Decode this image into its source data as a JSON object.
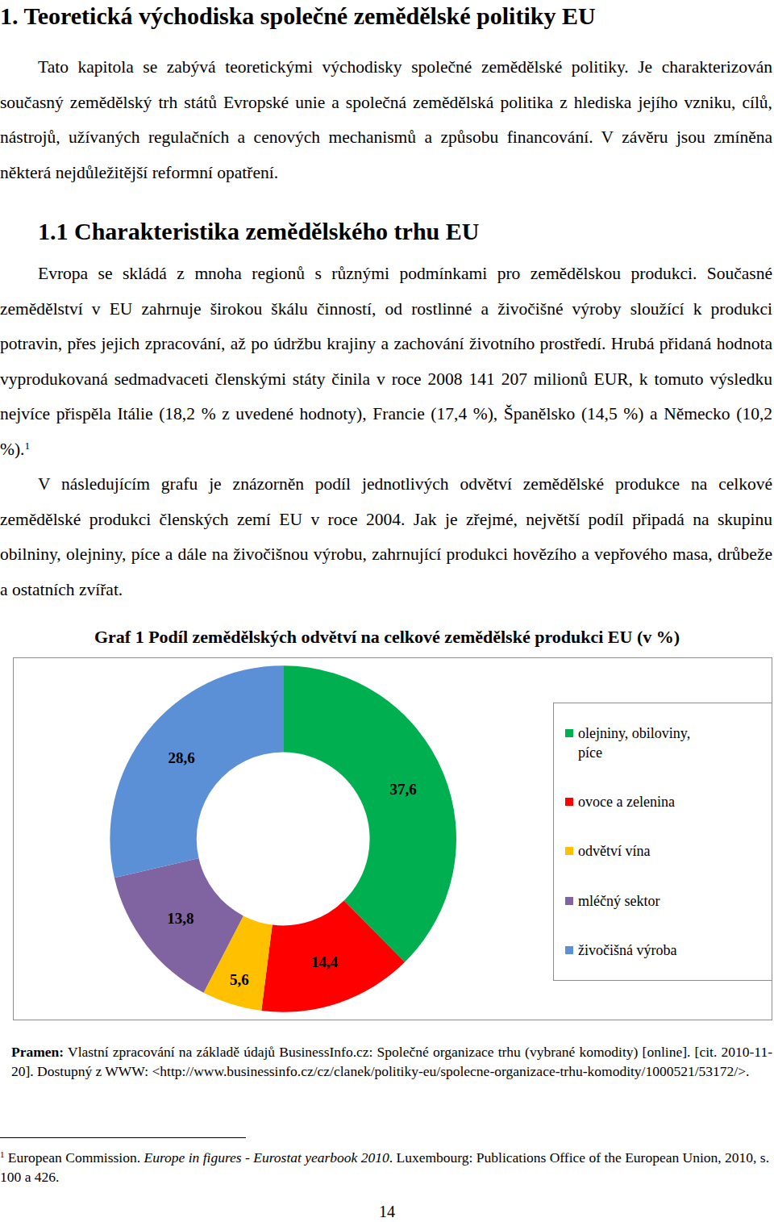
{
  "document": {
    "heading": "1. Teoretická východiska společné zemědělské politiky EU",
    "intro": "Tato kapitola se zabývá teoretickými východisky společné zemědělské politiky. Je charakterizován současný zemědělský trh států Evropské unie a společná zemědělská politika z hlediska jejího vzniku, cílů, nástrojů, užívaných regulačních a cenových mechanismů a způsobu financování. V závěru jsou zmíněna některá nejdůležitější reformní opatření.",
    "section": "1.1 Charakteristika zemědělského trhu EU",
    "paragraphs": [
      {
        "text": "Evropa se skládá z mnoha regionů s různými podmínkami pro zemědělskou produkci. Současné zemědělství v EU zahrnuje širokou škálu činností, od rostlinné a živočišné výroby sloužící k produkci potravin, přes jejich zpracování, až po údržbu krajiny a zachování životního prostředí. Hrubá přidaná hodnota vyprodukovaná sedmadvaceti členskými státy činila v roce 2008 141 207 milionů EUR, k tomuto výsledku nejvíce přispěla Itálie (18,2 % z uvedené hodnoty), Francie (17,4 %), Španělsko (14,5 %) a Německo (10,2 %).",
        "footnote_ref": "1"
      },
      {
        "text": "V následujícím grafu je znázorněn podíl jednotlivých odvětví zemědělské produkce na celkové zemědělské produkci členských zemí EU v roce 2004. Jak je zřejmé, největší podíl připadá na skupinu obilniny, olejniny, píce a dále na živočišnou výrobu, zahrnující produkci hovězího a vepřového masa, drůbeže a ostatních zvířat."
      }
    ],
    "source": {
      "label": "Pramen:",
      "text": "Vlastní zpracování na základě údajů BusinessInfo.cz: Společné organizace trhu (vybrané komodity) [online]. [cit. 2010-11-20]. Dostupný z WWW: <http://www.businessinfo.cz/cz/clanek/politiky-eu/spolecne-organizace-trhu-komodity/1000521/53172/>."
    },
    "footnote": {
      "mark": "1",
      "before": "European Commission. ",
      "italic": "Europe in figures - Eurostat yearbook 2010",
      "after": ". Luxembourg: Publications Office of the European Union, 2010, s. 100 a 426."
    },
    "page_number": "14"
  },
  "chart_data": {
    "type": "pie",
    "title": "Graf 1 Podíl zemědělských odvětví na celkové zemědělské produkci EU (v %)",
    "categories": [
      "olejniny, obiloviny, píce",
      "ovoce a zelenina",
      "odvětví vína",
      "mléčný sektor",
      "živočišná výroba"
    ],
    "values": [
      37.6,
      14.4,
      5.6,
      13.8,
      28.6
    ],
    "value_labels": [
      "37,6",
      "14,4",
      "5,6",
      "13,8",
      "28,6"
    ],
    "colors": [
      "#00b050",
      "#ff0000",
      "#ffc000",
      "#8064a2",
      "#5b8fd6"
    ],
    "data_labels": true,
    "legend": "right"
  }
}
